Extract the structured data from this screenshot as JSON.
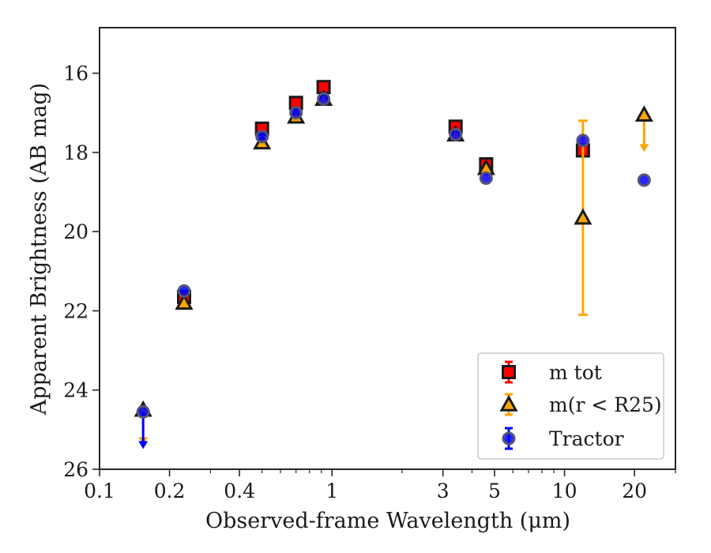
{
  "chart_data": {
    "type": "scatter",
    "xlabel": "Observed-frame Wavelength (μm)",
    "ylabel": "Apparent Brightness (AB mag)",
    "xscale": "log",
    "xlim": [
      0.1,
      30
    ],
    "ylim": [
      26,
      14.85
    ],
    "y_inverted": true,
    "xticks": [
      0.1,
      0.2,
      0.4,
      1,
      3,
      5,
      10,
      20
    ],
    "xtick_labels": [
      "0.1",
      "0.2",
      "0.4",
      "1",
      "3",
      "5",
      "10",
      "20"
    ],
    "yticks": [
      16,
      18,
      20,
      22,
      24,
      26
    ],
    "ytick_labels": [
      "16",
      "18",
      "20",
      "22",
      "24",
      "26"
    ],
    "grid": false,
    "legend_position": "lower-right",
    "series": [
      {
        "name": "m_tot",
        "legend_label": "m tot",
        "marker": "square",
        "color": "#ff0000",
        "points": [
          {
            "x": 0.231,
            "y": 21.65
          },
          {
            "x": 0.5,
            "y": 17.4
          },
          {
            "x": 0.7,
            "y": 16.75
          },
          {
            "x": 0.92,
            "y": 16.35
          },
          {
            "x": 3.4,
            "y": 17.35
          },
          {
            "x": 4.6,
            "y": 18.3
          },
          {
            "x": 12.0,
            "y": 17.95
          }
        ]
      },
      {
        "name": "m(r<R25)",
        "legend_label": "m(r < R25)",
        "marker": "triangle",
        "color": "#ffa500",
        "points": [
          {
            "x": 0.154,
            "y": 24.5,
            "upper_limit": true,
            "arrow_to": 25.35
          },
          {
            "x": 0.231,
            "y": 21.8
          },
          {
            "x": 0.5,
            "y": 17.75
          },
          {
            "x": 0.7,
            "y": 17.1
          },
          {
            "x": 0.92,
            "y": 16.65
          },
          {
            "x": 3.4,
            "y": 17.55
          },
          {
            "x": 4.6,
            "y": 18.4
          },
          {
            "x": 12.0,
            "y": 19.65,
            "err_lo": 17.2,
            "err_hi": 22.1
          },
          {
            "x": 22.0,
            "y": 17.05,
            "upper_limit": true,
            "arrow_to": 17.95
          }
        ]
      },
      {
        "name": "Tractor",
        "legend_label": "Tractor",
        "marker": "circle",
        "color": "#0000ff",
        "points": [
          {
            "x": 0.154,
            "y": 24.55,
            "upper_limit": true,
            "arrow_to": 25.45
          },
          {
            "x": 0.231,
            "y": 21.5
          },
          {
            "x": 0.5,
            "y": 17.6
          },
          {
            "x": 0.7,
            "y": 17.0
          },
          {
            "x": 0.92,
            "y": 16.65
          },
          {
            "x": 3.4,
            "y": 17.55
          },
          {
            "x": 4.6,
            "y": 18.65
          },
          {
            "x": 12.0,
            "y": 17.7
          },
          {
            "x": 22.0,
            "y": 18.7
          }
        ]
      }
    ]
  }
}
